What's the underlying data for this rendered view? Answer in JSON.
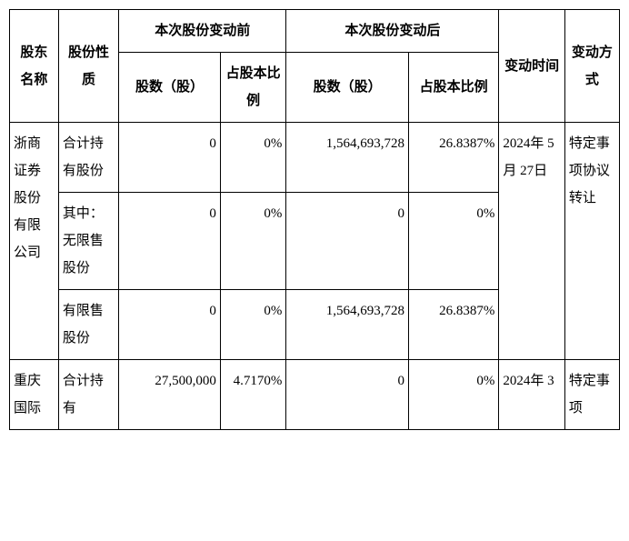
{
  "table": {
    "background_color": "#ffffff",
    "border_color": "#000000",
    "font_family": "SimSun",
    "font_size_pt": 11,
    "headers": {
      "name": "股东名称",
      "type": "股份性质",
      "before_group": "本次股份变动前",
      "after_group": "本次股份变动后",
      "shares": "股数（股）",
      "pct": "占股本比例",
      "time": "变动时间",
      "method": "变动方式"
    },
    "rows": [
      {
        "name": "浙商证券股份有限公司",
        "time": "2024年 5月 27日",
        "method": "特定事项协议转让",
        "sub": [
          {
            "type": "合计持有股份",
            "before_shares": "0",
            "before_pct": "0%",
            "after_shares": "1,564,693,728",
            "after_pct": "26.8387%"
          },
          {
            "type": "其中：无限售股份",
            "before_shares": "0",
            "before_pct": "0%",
            "after_shares": "0",
            "after_pct": "0%"
          },
          {
            "type": "有限售股份",
            "before_shares": "0",
            "before_pct": "0%",
            "after_shares": "1,564,693,728",
            "after_pct": "26.8387%"
          }
        ]
      },
      {
        "name": "重庆国际",
        "time": "2024年 3",
        "method": "特定事项",
        "sub": [
          {
            "type": "合计持有",
            "before_shares": "27,500,000",
            "before_pct": "4.7170%",
            "after_shares": "0",
            "after_pct": "0%"
          }
        ]
      }
    ]
  }
}
